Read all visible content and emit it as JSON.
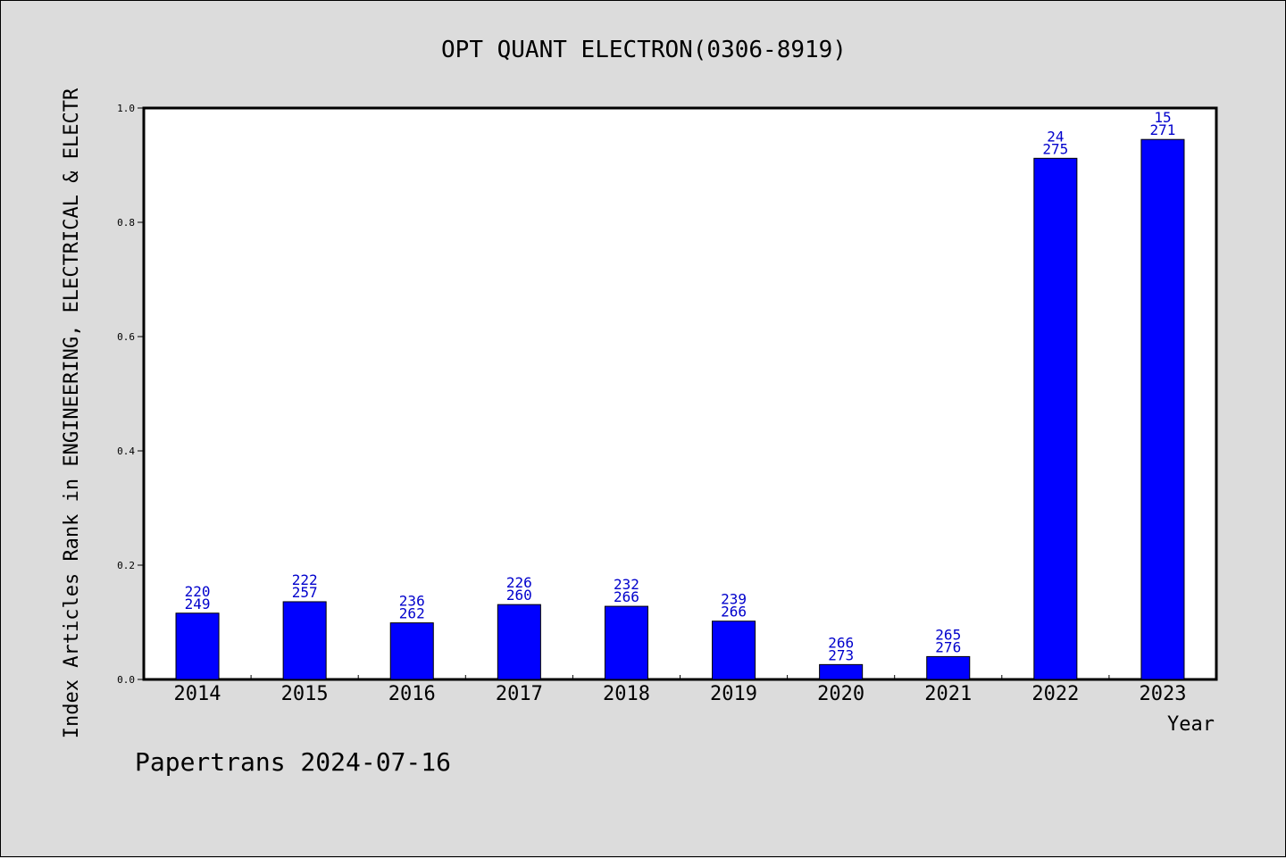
{
  "chart_data": {
    "type": "bar",
    "title": "OPT QUANT ELECTRON(0306-8919)",
    "xlabel": "Year",
    "ylabel": "Index Articles Rank in ENGINEERING, ELECTRICAL & ELECTR",
    "categories": [
      "2014",
      "2015",
      "2016",
      "2017",
      "2018",
      "2019",
      "2020",
      "2021",
      "2022",
      "2023"
    ],
    "values": [
      0.116,
      0.136,
      0.099,
      0.131,
      0.128,
      0.102,
      0.026,
      0.04,
      0.912,
      0.945
    ],
    "rank_labels": [
      "220",
      "222",
      "236",
      "226",
      "232",
      "239",
      "266",
      "265",
      "24",
      "15"
    ],
    "total_labels": [
      "249",
      "257",
      "262",
      "260",
      "266",
      "266",
      "273",
      "276",
      "275",
      "271"
    ],
    "ylim": [
      0,
      1.0
    ],
    "yticks": [
      "0.0",
      "0.2",
      "0.4",
      "0.6",
      "0.8",
      "1.0"
    ],
    "bar_color": "#0000ff",
    "label_color": "#0000cc",
    "background": "#dcdcdc",
    "plot_background": "#ffffff",
    "grid": false,
    "legend": "none"
  },
  "footer": "Papertrans 2024-07-16"
}
